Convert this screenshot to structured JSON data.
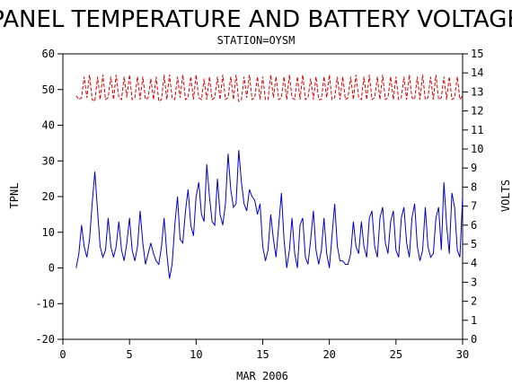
{
  "chart_data": {
    "type": "line",
    "title": "PANEL TEMPERATURE AND BATTERY VOLTAGE",
    "subtitle": "STATION=OYSM",
    "xlabel": "MAR 2006",
    "ylabel_left": "TPNL",
    "ylabel_right": "VOLTS",
    "xlim": [
      0,
      30
    ],
    "ylim_left": [
      -20,
      60
    ],
    "ylim_right": [
      0,
      15
    ],
    "x_ticks": [
      0,
      5,
      10,
      15,
      20,
      25,
      30
    ],
    "y_left_ticks": [
      -20,
      -10,
      0,
      10,
      20,
      30,
      40,
      50,
      60
    ],
    "y_right_ticks": [
      0,
      1,
      2,
      3,
      4,
      5,
      6,
      7,
      8,
      9,
      10,
      11,
      12,
      13,
      14,
      15
    ],
    "grid": false,
    "series": [
      {
        "axis": "left",
        "color": "#0000cc",
        "style": "solid",
        "x": [
          1.0,
          1.2,
          1.4,
          1.6,
          1.8,
          2.0,
          2.2,
          2.4,
          2.6,
          2.8,
          3.0,
          3.2,
          3.4,
          3.6,
          3.8,
          4.0,
          4.2,
          4.4,
          4.6,
          4.8,
          5.0,
          5.2,
          5.4,
          5.6,
          5.8,
          6.0,
          6.2,
          6.4,
          6.6,
          6.8,
          7.0,
          7.2,
          7.4,
          7.6,
          7.8,
          8.0,
          8.2,
          8.4,
          8.6,
          8.8,
          9.0,
          9.2,
          9.4,
          9.6,
          9.8,
          10.0,
          10.2,
          10.4,
          10.6,
          10.8,
          11.0,
          11.2,
          11.4,
          11.6,
          11.8,
          12.0,
          12.2,
          12.4,
          12.6,
          12.8,
          13.0,
          13.2,
          13.4,
          13.6,
          13.8,
          14.0,
          14.2,
          14.4,
          14.6,
          14.8,
          15.0,
          15.2,
          15.4,
          15.6,
          15.8,
          16.0,
          16.2,
          16.4,
          16.6,
          16.8,
          17.0,
          17.2,
          17.4,
          17.6,
          17.8,
          18.0,
          18.2,
          18.4,
          18.6,
          18.8,
          19.0,
          19.2,
          19.4,
          19.6,
          19.8,
          20.0,
          20.2,
          20.4,
          20.6,
          20.8,
          21.0,
          21.2,
          21.4,
          21.6,
          21.8,
          22.0,
          22.2,
          22.4,
          22.6,
          22.8,
          23.0,
          23.2,
          23.4,
          23.6,
          23.8,
          24.0,
          24.2,
          24.4,
          24.6,
          24.8,
          25.0,
          25.2,
          25.4,
          25.6,
          25.8,
          26.0,
          26.2,
          26.4,
          26.6,
          26.8,
          27.0,
          27.2,
          27.4,
          27.6,
          27.8,
          28.0,
          28.2,
          28.4,
          28.6,
          28.8,
          29.0,
          29.2,
          29.4,
          29.6,
          29.8,
          30.0
        ],
        "values": [
          0,
          4,
          12,
          6,
          3,
          8,
          18,
          27,
          16,
          6,
          3,
          5,
          14,
          6,
          3,
          6,
          13,
          5,
          2,
          7,
          14,
          5,
          2,
          6,
          16,
          7,
          1,
          4,
          7,
          4,
          2,
          1,
          6,
          14,
          4,
          -3,
          1,
          12,
          20,
          8,
          7,
          16,
          22,
          12,
          9,
          20,
          24,
          15,
          13,
          29,
          20,
          13,
          12,
          25,
          15,
          12,
          18,
          32,
          22,
          17,
          18,
          33,
          24,
          18,
          16,
          22,
          20,
          19,
          15,
          18,
          6,
          2,
          5,
          15,
          8,
          3,
          12,
          21,
          8,
          0,
          5,
          14,
          4,
          0,
          12,
          14,
          3,
          1,
          8,
          16,
          5,
          1,
          5,
          14,
          4,
          0,
          9,
          18,
          6,
          2,
          2,
          1,
          1,
          4,
          13,
          6,
          4,
          13,
          6,
          3,
          14,
          16,
          6,
          3,
          14,
          17,
          7,
          4,
          13,
          16,
          5,
          3,
          14,
          17,
          7,
          3,
          14,
          18,
          6,
          2,
          5,
          17,
          6,
          3,
          4,
          14,
          17,
          5,
          24,
          12,
          4,
          21,
          17,
          5,
          3,
          20
        ]
      },
      {
        "axis": "right",
        "color": "#dd0000",
        "style": "dashed",
        "x": [
          1.0,
          1.2,
          1.4,
          1.6,
          1.8,
          2.0,
          2.2,
          2.4,
          2.6,
          2.8,
          3.0,
          3.2,
          3.4,
          3.6,
          3.8,
          4.0,
          4.2,
          4.4,
          4.6,
          4.8,
          5.0,
          5.2,
          5.4,
          5.6,
          5.8,
          6.0,
          6.2,
          6.4,
          6.6,
          6.8,
          7.0,
          7.2,
          7.4,
          7.6,
          7.8,
          8.0,
          8.2,
          8.4,
          8.6,
          8.8,
          9.0,
          9.2,
          9.4,
          9.6,
          9.8,
          10.0,
          10.2,
          10.4,
          10.6,
          10.8,
          11.0,
          11.2,
          11.4,
          11.6,
          11.8,
          12.0,
          12.2,
          12.4,
          12.6,
          12.8,
          13.0,
          13.2,
          13.4,
          13.6,
          13.8,
          14.0,
          14.2,
          14.4,
          14.6,
          14.8,
          15.0,
          15.2,
          15.4,
          15.6,
          15.8,
          16.0,
          16.2,
          16.4,
          16.6,
          16.8,
          17.0,
          17.2,
          17.4,
          17.6,
          17.8,
          18.0,
          18.2,
          18.4,
          18.6,
          18.8,
          19.0,
          19.2,
          19.4,
          19.6,
          19.8,
          20.0,
          20.2,
          20.4,
          20.6,
          20.8,
          21.0,
          21.2,
          21.4,
          21.6,
          21.8,
          22.0,
          22.2,
          22.4,
          22.6,
          22.8,
          23.0,
          23.2,
          23.4,
          23.6,
          23.8,
          24.0,
          24.2,
          24.4,
          24.6,
          24.8,
          25.0,
          25.2,
          25.4,
          25.6,
          25.8,
          26.0,
          26.2,
          26.4,
          26.6,
          26.8,
          27.0,
          27.2,
          27.4,
          27.6,
          27.8,
          28.0,
          28.2,
          28.4,
          28.6,
          28.8,
          29.0,
          29.2,
          29.4,
          29.6,
          29.8,
          30.0
        ],
        "values": [
          12.8,
          12.6,
          12.7,
          13.8,
          12.7,
          13.9,
          12.6,
          12.5,
          13.8,
          12.6,
          13.9,
          12.6,
          12.7,
          13.8,
          12.6,
          13.9,
          12.7,
          12.6,
          13.8,
          12.7,
          13.9,
          12.6,
          12.7,
          13.8,
          12.6,
          13.8,
          12.6,
          12.7,
          13.7,
          12.6,
          13.8,
          12.5,
          12.6,
          13.9,
          12.6,
          13.9,
          12.7,
          12.6,
          13.8,
          12.7,
          13.9,
          12.6,
          12.7,
          13.8,
          12.6,
          13.9,
          12.7,
          12.6,
          13.7,
          12.6,
          13.8,
          12.6,
          12.7,
          13.8,
          12.6,
          13.9,
          12.6,
          12.7,
          13.8,
          12.6,
          13.9,
          12.5,
          12.6,
          13.8,
          12.7,
          13.9,
          12.6,
          12.7,
          13.8,
          12.6,
          13.8,
          12.6,
          12.6,
          13.9,
          12.7,
          13.8,
          12.6,
          12.7,
          13.8,
          12.6,
          13.9,
          12.7,
          12.6,
          13.8,
          12.6,
          13.9,
          12.6,
          12.7,
          13.7,
          12.6,
          13.8,
          12.6,
          12.6,
          13.8,
          12.7,
          13.9,
          12.6,
          12.7,
          13.8,
          12.6,
          13.8,
          12.6,
          12.7,
          13.8,
          12.6,
          13.9,
          12.7,
          12.6,
          13.8,
          12.6,
          13.9,
          12.6,
          12.7,
          13.8,
          12.6,
          13.9,
          12.6,
          12.7,
          13.8,
          12.6,
          13.8,
          12.6,
          12.7,
          13.8,
          12.6,
          13.9,
          12.7,
          12.6,
          13.8,
          12.6,
          13.9,
          12.6,
          12.7,
          13.8,
          12.6,
          13.9,
          12.6,
          12.7,
          13.8,
          12.6,
          13.8,
          12.6,
          12.7,
          13.8,
          12.6,
          12.8
        ]
      }
    ]
  }
}
